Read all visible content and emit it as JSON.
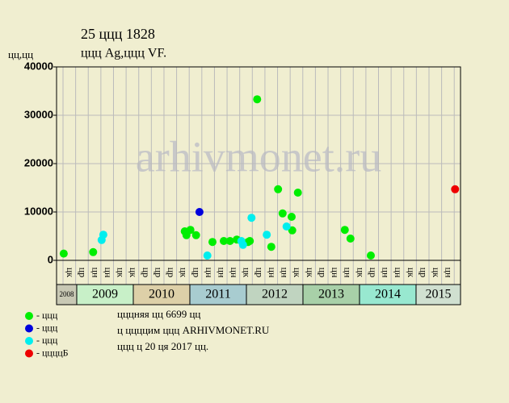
{
  "chart_data": {
    "type": "scatter",
    "title": "25 ццц 1828",
    "subtitle": "ццц Ag,ццц VF.",
    "ylabel": "цц,цц",
    "watermark": "arhivmonet.ru",
    "xlim": [
      2008.643,
      2015.786
    ],
    "xticks": [
      2008,
      2009,
      2010,
      2011,
      2012,
      2013,
      2014,
      2015
    ],
    "xtick_colors": [
      "#c8c8b4",
      "#c8f0c8",
      "#ddd0a8",
      "#a8ccd0",
      "#c0d4c0",
      "#a8d0a8",
      "#98e8d0",
      "#d0e0d0"
    ],
    "column_labels": [
      "цк",
      "цр",
      "цн",
      "цн",
      "цк",
      "цк",
      "цр",
      "цр",
      "цр",
      "цк",
      "цр",
      "цн",
      "цн",
      "цн",
      "цк",
      "цр",
      "цн",
      "цн",
      "цк",
      "цк",
      "цр",
      "цн",
      "цн",
      "цк",
      "цр",
      "цн",
      "цн",
      "цк",
      "цр",
      "цк",
      "цн"
    ],
    "ylim": [
      0,
      40000
    ],
    "yticks": [
      0,
      10000,
      20000,
      30000,
      40000
    ],
    "grid": true,
    "series": [
      {
        "name": "- ццц",
        "color": "#00ee00",
        "x": [
          2008.77,
          2009.29,
          2010.91,
          2010.94,
          2011.01,
          2011.11,
          2011.4,
          2011.6,
          2011.71,
          2011.83,
          2012.03,
          2012.06,
          2012.19,
          2012.44,
          2012.56,
          2012.64,
          2012.8,
          2012.81,
          2012.91,
          2013.74,
          2013.84,
          2014.2
        ],
        "values": [
          1400,
          1700,
          6000,
          5200,
          6300,
          5200,
          3800,
          4000,
          4000,
          4300,
          3800,
          4000,
          33300,
          2800,
          14700,
          9700,
          9000,
          6200,
          14000,
          6300,
          4500,
          1000
        ]
      },
      {
        "name": "- ццц",
        "color": "#0000dd",
        "x": [
          2011.17
        ],
        "values": [
          10000
        ]
      },
      {
        "name": "- ццц",
        "color": "#00eeee",
        "x": [
          2009.47,
          2009.44,
          2011.31,
          2011.91,
          2011.94,
          2012.09,
          2012.36,
          2012.71
        ],
        "values": [
          5300,
          4200,
          1000,
          4000,
          3200,
          8800,
          5300,
          7000
        ]
      },
      {
        "name": "- ццццБ",
        "color": "#ee0000",
        "x": [
          2015.69
        ],
        "values": [
          14700
        ]
      }
    ],
    "notes": [
      "цццняя цц 6699 цц",
      "ц ццццим ццц ARHIVMONET.RU",
      "ццц ц 20 ця 2017 цц."
    ]
  }
}
